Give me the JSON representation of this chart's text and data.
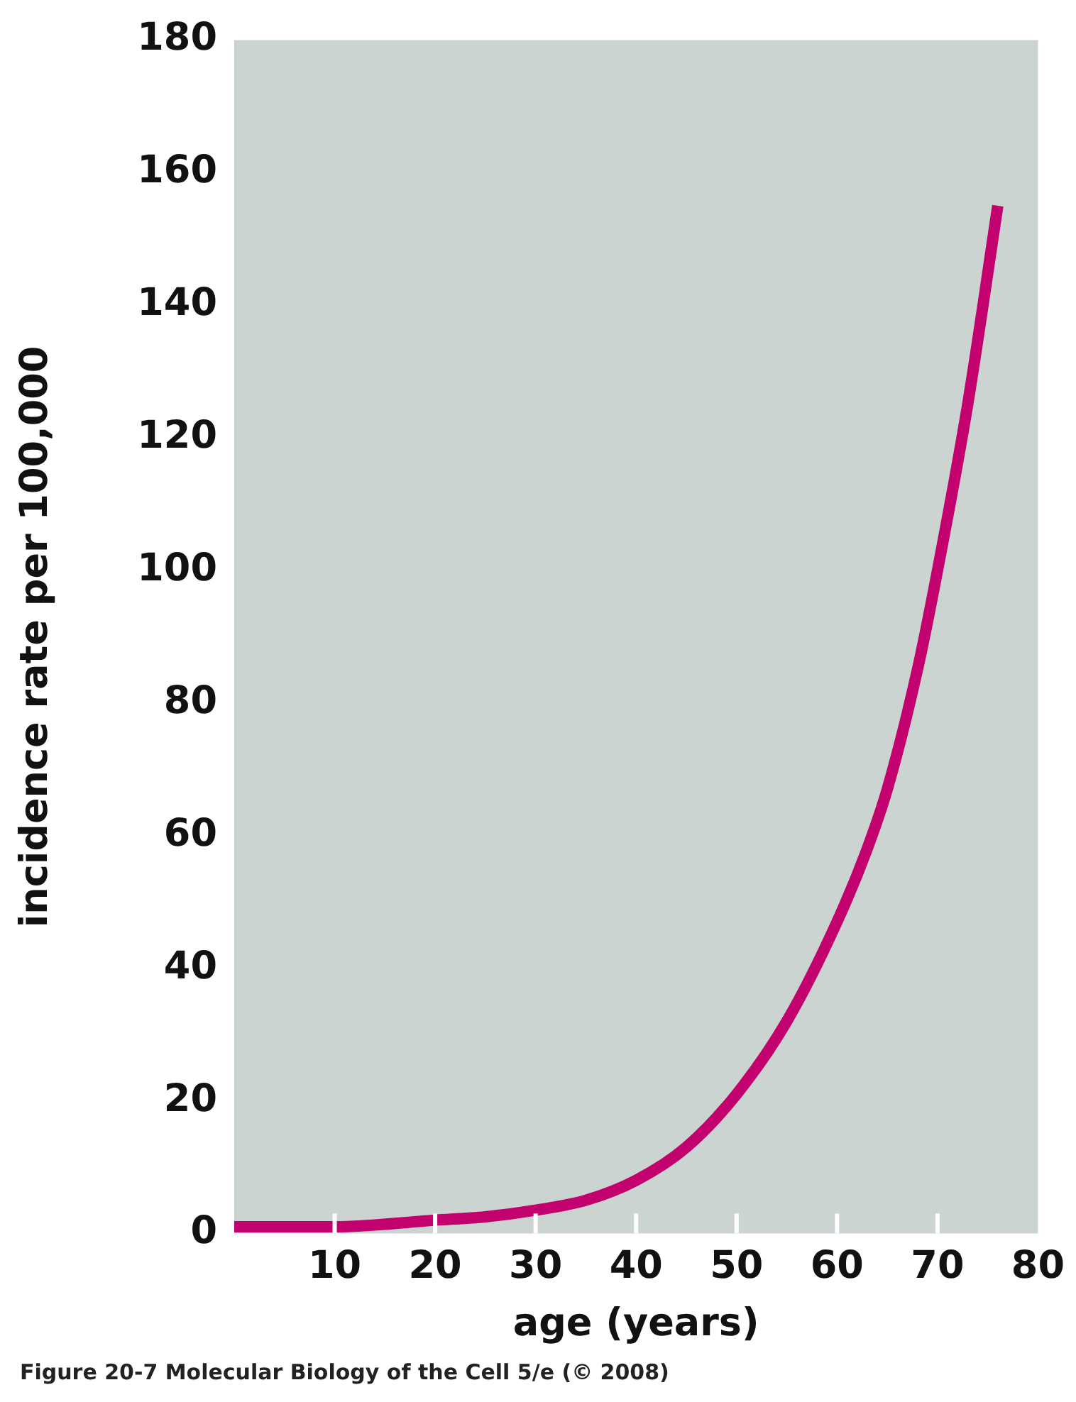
{
  "chart_data": {
    "type": "line",
    "xlabel": "age (years)",
    "ylabel": "incidence rate per 100,000",
    "annotations": [
      "Figure 20-7 Molecular Biology of the Cell 5/e (© 2008)"
    ],
    "x": [
      0,
      10,
      20,
      25,
      30,
      35,
      40,
      45,
      50,
      55,
      60,
      63,
      65,
      68,
      70,
      73,
      76
    ],
    "series": [
      {
        "color": "#c2006e",
        "values": [
          1,
          1,
          2,
          2.5,
          3.5,
          5,
          8,
          13,
          21,
          32,
          47,
          58,
          67,
          85,
          100,
          125,
          155
        ]
      }
    ],
    "xlim": [
      0,
      80
    ],
    "xticks": [
      10,
      20,
      30,
      40,
      50,
      60,
      70,
      80
    ],
    "ylim": [
      0,
      180
    ],
    "yticks": [
      0,
      20,
      40,
      60,
      80,
      100,
      120,
      140,
      160,
      180
    ],
    "grid": false,
    "legend": false,
    "marker": "none",
    "line_style": "solid"
  }
}
